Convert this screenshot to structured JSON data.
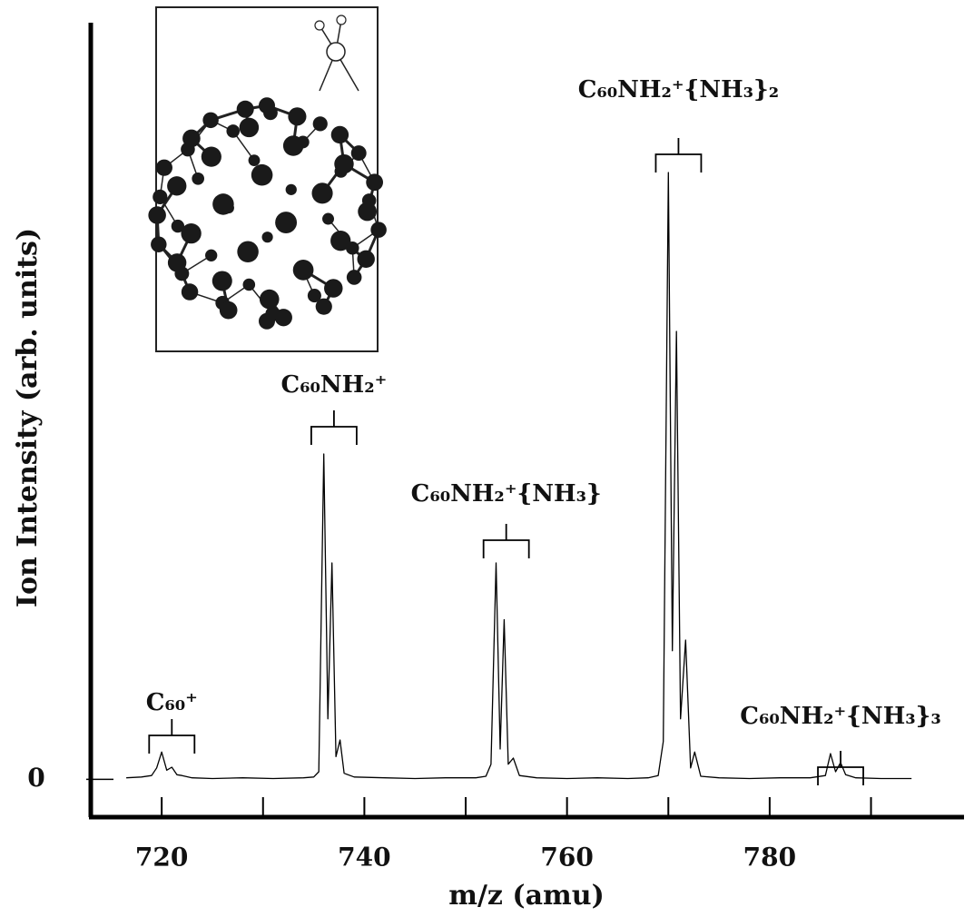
{
  "chart_data": {
    "type": "line",
    "ylabel": "Ion Intensity (arb. units)",
    "xlabel": "m/z  (amu)",
    "xlim": [
      713,
      799
    ],
    "xticks": [
      720,
      740,
      760,
      780
    ],
    "xminor_ticks": [
      730,
      750,
      770,
      790
    ],
    "ylim": [
      -5,
      100
    ],
    "yticks": [
      0
    ],
    "color": "#000000",
    "x": [
      716.5,
      718,
      719,
      719.5,
      720,
      720.5,
      721,
      721.5,
      722,
      723,
      725,
      728,
      731,
      734,
      735,
      735.5,
      736,
      736.4,
      736.8,
      737.2,
      737.6,
      738,
      739,
      742,
      745,
      748,
      751,
      752,
      752.5,
      753,
      753.4,
      753.8,
      754.2,
      754.7,
      755.3,
      757,
      760,
      763,
      766,
      768,
      769,
      769.5,
      770,
      770.4,
      770.8,
      771.2,
      771.7,
      772.2,
      772.6,
      773.2,
      775,
      778,
      781,
      784,
      785.5,
      786,
      786.5,
      787,
      787.5,
      788.5,
      791,
      794
    ],
    "values": [
      0.2,
      0.3,
      0.5,
      1.5,
      3.6,
      1.2,
      1.6,
      0.6,
      0.5,
      0.2,
      0.1,
      0.2,
      0.1,
      0.2,
      0.3,
      1.0,
      43.0,
      8,
      28.6,
      3,
      5.2,
      0.8,
      0.3,
      0.2,
      0.1,
      0.2,
      0.2,
      0.4,
      2,
      28.6,
      4,
      21.1,
      2,
      2.8,
      0.5,
      0.2,
      0.1,
      0.2,
      0.1,
      0.2,
      0.5,
      5,
      80.2,
      17,
      59.2,
      8,
      18.4,
      1.5,
      3.6,
      0.4,
      0.2,
      0.1,
      0.2,
      0.2,
      0.5,
      3.4,
      1.0,
      2.2,
      0.6,
      0.2,
      0.1,
      0.1
    ],
    "annotations": [
      {
        "text": "C₆₀⁺",
        "x": 721
      },
      {
        "text": "C₆₀NH₂⁺",
        "x": 737
      },
      {
        "text": "C₆₀NH₂⁺{NH₃}",
        "x": 754
      },
      {
        "text": "C₆₀NH₂⁺{NH₃}₂",
        "x": 771
      },
      {
        "text": "C₆₀NH₂⁺{NH₃}₃",
        "x": 787
      }
    ]
  }
}
